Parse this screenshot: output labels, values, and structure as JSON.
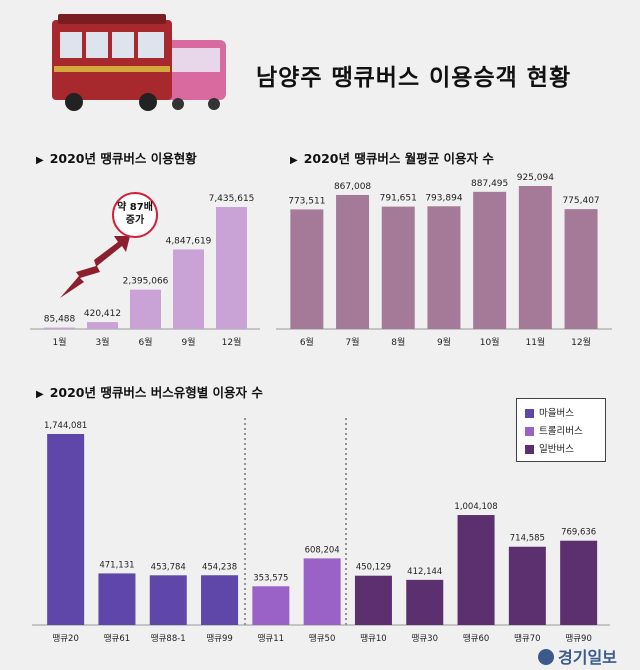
{
  "header": {
    "title": "남양주 땡큐버스 이용승객 현황"
  },
  "callout": {
    "line1": "약 87배",
    "line2": "증가"
  },
  "logo": {
    "text": "경기일보"
  },
  "legend": {
    "items": [
      {
        "label": "마을버스",
        "color": "#5e47a8"
      },
      {
        "label": "트롤리버스",
        "color": "#9a62c6"
      },
      {
        "label": "일반버스",
        "color": "#5c2f6e"
      }
    ]
  },
  "chart_data": [
    {
      "type": "bar",
      "title": "2020년 땡큐버스 이용현황",
      "categories": [
        "1월",
        "3월",
        "6월",
        "9월",
        "12월"
      ],
      "values": [
        85488,
        420412,
        2395066,
        4847619,
        7435615
      ],
      "value_labels": [
        "85,488",
        "420,412",
        "2,395,066",
        "4,847,619",
        "7,435,615"
      ],
      "color": "#c9a2d6",
      "ylim": [
        0,
        7435615
      ]
    },
    {
      "type": "bar",
      "title": "2020년 땡큐버스 월평균 이용자 수",
      "categories": [
        "6월",
        "7월",
        "8월",
        "9월",
        "10월",
        "11월",
        "12월"
      ],
      "values": [
        773511,
        867008,
        791651,
        793894,
        887495,
        925094,
        775407
      ],
      "value_labels": [
        "773,511",
        "867,008",
        "791,651",
        "793,894",
        "887,495",
        "925,094",
        "775,407"
      ],
      "color": "#a57a98",
      "ylim": [
        0,
        925094
      ]
    },
    {
      "type": "bar",
      "title": "2020년 땡큐버스 버스유형별 이용자 수",
      "categories": [
        "땡큐20",
        "땡큐61",
        "땡큐88-1",
        "땡큐99",
        "땡큐11",
        "땡큐50",
        "땡큐10",
        "땡큐30",
        "땡큐60",
        "땡큐70",
        "땡큐90"
      ],
      "values": [
        1744081,
        471131,
        453784,
        454238,
        353575,
        608204,
        450129,
        412144,
        1004108,
        714585,
        769636
      ],
      "value_labels": [
        "1,744,081",
        "471,131",
        "453,784",
        "454,238",
        "353,575",
        "608,204",
        "450,129",
        "412,144",
        "1,004,108",
        "714,585",
        "769,636"
      ],
      "groups": [
        "마을버스",
        "마을버스",
        "마을버스",
        "마을버스",
        "트롤리버스",
        "트롤리버스",
        "일반버스",
        "일반버스",
        "일반버스",
        "일반버스",
        "일반버스"
      ],
      "ylim": [
        0,
        1744081
      ]
    }
  ]
}
